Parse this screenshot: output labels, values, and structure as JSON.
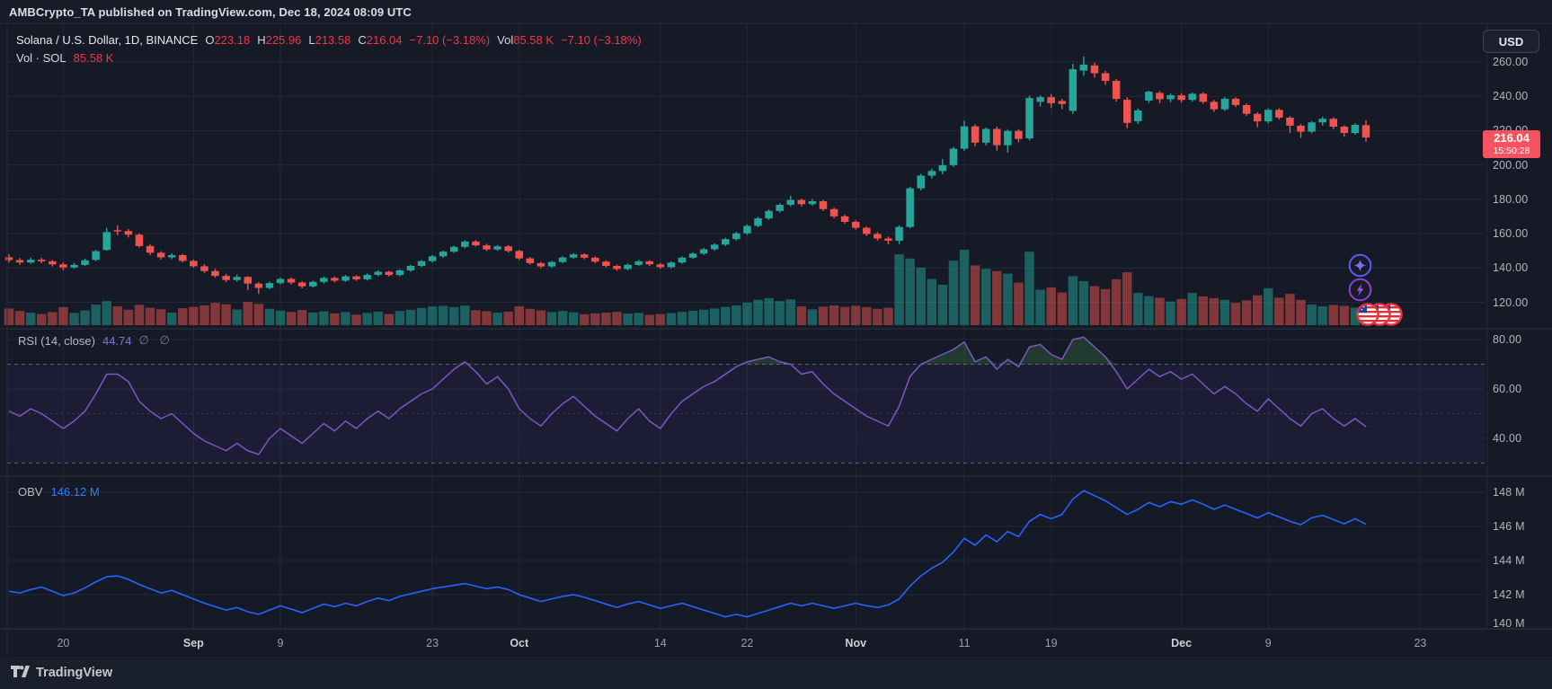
{
  "header": {
    "published": "AMBCrypto_TA published on TradingView.com, Dec 18, 2024 08:09 UTC"
  },
  "legend": {
    "symbol": "Solana / U.S. Dollar, 1D, BINANCE",
    "ohlc": [
      {
        "k": "O",
        "v": "223.18"
      },
      {
        "k": "H",
        "v": "225.96"
      },
      {
        "k": "L",
        "v": "213.58"
      },
      {
        "k": "C",
        "v": "216.04"
      }
    ],
    "change": "−7.10 (−3.18%)",
    "vol_label": "Vol",
    "vol_value": "85.58 K",
    "change2": "−7.10 (−3.18%)",
    "row2_label": "Vol · SOL",
    "row2_value": "85.58 K"
  },
  "axis": {
    "currency": "USD",
    "price_badge": {
      "price": "216.04",
      "time": "15:50:28"
    },
    "price_axis_labels": [
      {
        "text": "260.00",
        "value": 260
      },
      {
        "text": "240.00",
        "value": 240
      },
      {
        "text": "220.00",
        "value": 220
      },
      {
        "text": "200.00",
        "value": 200
      },
      {
        "text": "180.00",
        "value": 180
      },
      {
        "text": "160.00",
        "value": 160
      },
      {
        "text": "140.00",
        "value": 140
      },
      {
        "text": "120.00",
        "value": 120
      }
    ],
    "rsi_axis_labels": [
      {
        "text": "80.00",
        "value": 80
      },
      {
        "text": "60.00",
        "value": 60
      },
      {
        "text": "40.00",
        "value": 40
      }
    ],
    "obv_axis_labels": [
      {
        "text": "148 M",
        "value": 148
      },
      {
        "text": "146 M",
        "value": 146
      },
      {
        "text": "144 M",
        "value": 144
      },
      {
        "text": "142 M",
        "value": 142
      },
      {
        "text": "140 M",
        "value": 140
      }
    ],
    "time_ticks": [
      {
        "label": "20",
        "index": 5,
        "major": false
      },
      {
        "label": "Sep",
        "index": 17,
        "major": true
      },
      {
        "label": "9",
        "index": 25,
        "major": false
      },
      {
        "label": "23",
        "index": 39,
        "major": false
      },
      {
        "label": "Oct",
        "index": 47,
        "major": true
      },
      {
        "label": "14",
        "index": 60,
        "major": false
      },
      {
        "label": "22",
        "index": 68,
        "major": false
      },
      {
        "label": "Nov",
        "index": 78,
        "major": true
      },
      {
        "label": "11",
        "index": 88,
        "major": false
      },
      {
        "label": "19",
        "index": 96,
        "major": false
      },
      {
        "label": "Dec",
        "index": 108,
        "major": true
      },
      {
        "label": "9",
        "index": 116,
        "major": false
      },
      {
        "label": "23",
        "index": 130,
        "major": false
      }
    ]
  },
  "rsi_pane": {
    "title": "RSI (14, close)",
    "value": "44.74",
    "empties": "∅ ∅"
  },
  "obv_pane": {
    "title": "OBV",
    "value": "146.12 M"
  },
  "footer": {
    "brand": "TradingView"
  },
  "icons": {
    "right_floats": [
      "sparkle-badge",
      "lightning-badge",
      "us-flag-idea-bubbles"
    ]
  },
  "colors": {
    "up": "#26a69a",
    "down": "#ef5350",
    "badge": "#f7525f",
    "rsi_line": "#7e57c2",
    "obv_line": "#2962ff",
    "value_red": "#f23645",
    "rsi_value": "#8673ce",
    "obv_value": "#2d7ff9",
    "grid": "#222838",
    "band": "rgba(124,77,255,0.07)"
  },
  "chart_data": {
    "type": "candlestick+volume+rsi+obv",
    "symbol": "SOL/USD",
    "timeframe": "1D",
    "exchange": "BINANCE",
    "title": "Solana / U.S. Dollar, 1D, BINANCE",
    "start_date": "2024-08-15",
    "end_date": "2024-12-18",
    "last_bar": {
      "o": 223.18,
      "h": 225.96,
      "l": 213.58,
      "c": 216.04,
      "change": -7.1,
      "change_pct": -3.18,
      "volume_k": 85.58
    },
    "price_axis": [
      260,
      240,
      220,
      200,
      180,
      160,
      140,
      120
    ],
    "rsi_levels": [
      70,
      50,
      30
    ],
    "rsi_last": 44.74,
    "obv_last_m": 146.12,
    "obv_axis": [
      148,
      146,
      144,
      142,
      140
    ],
    "candles": [
      [
        146.2,
        147.9,
        143.1,
        144.6,
        78
      ],
      [
        144.6,
        145.8,
        141.9,
        143.2,
        66
      ],
      [
        143.2,
        146.1,
        142.5,
        144.8,
        58
      ],
      [
        144.8,
        145.9,
        142.8,
        143.9,
        52
      ],
      [
        143.9,
        144.7,
        140.9,
        142.1,
        61
      ],
      [
        142.1,
        143.2,
        138.8,
        140.3,
        84
      ],
      [
        140.3,
        142.9,
        139.6,
        141.8,
        57
      ],
      [
        141.8,
        145.4,
        141.2,
        144.5,
        69
      ],
      [
        144.7,
        150.6,
        144.0,
        149.8,
        96
      ],
      [
        150.5,
        163.4,
        150.1,
        160.9,
        112
      ],
      [
        162.0,
        164.8,
        159.2,
        161.5,
        88
      ],
      [
        161.5,
        162.7,
        157.8,
        159.4,
        72
      ],
      [
        159.4,
        160.2,
        151.9,
        152.8,
        95
      ],
      [
        152.8,
        153.9,
        147.6,
        148.9,
        81
      ],
      [
        148.9,
        149.8,
        144.9,
        146.2,
        74
      ],
      [
        146.2,
        148.6,
        145.1,
        147.5,
        58
      ],
      [
        147.5,
        148.1,
        143.2,
        144.1,
        79
      ],
      [
        144.1,
        144.9,
        140.2,
        141.0,
        85
      ],
      [
        141.0,
        142.2,
        137.1,
        138.2,
        92
      ],
      [
        138.2,
        139.5,
        134.3,
        135.4,
        104
      ],
      [
        135.4,
        136.6,
        131.7,
        133.0,
        97
      ],
      [
        133.0,
        136.2,
        132.1,
        134.8,
        73
      ],
      [
        134.8,
        135.3,
        127.2,
        130.9,
        108
      ],
      [
        130.9,
        131.8,
        124.9,
        128.4,
        99
      ],
      [
        128.4,
        132.0,
        127.5,
        131.2,
        76
      ],
      [
        131.2,
        134.4,
        130.3,
        133.6,
        68
      ],
      [
        133.6,
        134.5,
        130.4,
        131.5,
        62
      ],
      [
        131.5,
        132.3,
        128.1,
        129.3,
        71
      ],
      [
        129.3,
        132.6,
        128.6,
        131.9,
        59
      ],
      [
        131.9,
        135.0,
        131.0,
        134.2,
        64
      ],
      [
        134.2,
        135.1,
        131.6,
        132.6,
        55
      ],
      [
        132.6,
        135.9,
        131.9,
        135.1,
        61
      ],
      [
        135.1,
        135.8,
        132.4,
        133.4,
        49
      ],
      [
        133.4,
        136.8,
        132.7,
        136.0,
        57
      ],
      [
        136.0,
        138.6,
        135.2,
        137.8,
        63
      ],
      [
        137.8,
        138.4,
        135.0,
        135.9,
        52
      ],
      [
        135.9,
        139.3,
        135.1,
        138.6,
        66
      ],
      [
        138.6,
        141.9,
        137.8,
        141.2,
        72
      ],
      [
        141.2,
        144.7,
        140.5,
        144.0,
        80
      ],
      [
        144.0,
        147.5,
        143.2,
        146.8,
        87
      ],
      [
        146.8,
        150.2,
        145.9,
        149.5,
        90
      ],
      [
        149.5,
        153.0,
        148.7,
        152.3,
        84
      ],
      [
        152.3,
        156.2,
        151.5,
        155.4,
        91
      ],
      [
        155.4,
        156.3,
        152.4,
        153.2,
        70
      ],
      [
        153.2,
        154.0,
        149.9,
        150.8,
        65
      ],
      [
        150.8,
        153.4,
        150.0,
        152.6,
        58
      ],
      [
        152.6,
        153.3,
        149.0,
        149.9,
        63
      ],
      [
        149.9,
        150.6,
        144.6,
        145.6,
        88
      ],
      [
        145.6,
        146.4,
        141.9,
        142.8,
        76
      ],
      [
        142.8,
        143.6,
        139.8,
        140.9,
        69
      ],
      [
        140.9,
        144.2,
        140.1,
        143.5,
        61
      ],
      [
        143.5,
        146.9,
        142.8,
        146.1,
        66
      ],
      [
        146.1,
        148.7,
        145.3,
        147.9,
        60
      ],
      [
        147.9,
        148.6,
        145.1,
        146.0,
        51
      ],
      [
        146.0,
        146.8,
        142.8,
        143.7,
        55
      ],
      [
        143.7,
        144.5,
        140.3,
        141.2,
        58
      ],
      [
        141.2,
        142.0,
        138.4,
        139.4,
        62
      ],
      [
        139.4,
        142.6,
        138.7,
        141.8,
        54
      ],
      [
        141.8,
        144.7,
        141.1,
        143.9,
        57
      ],
      [
        143.9,
        144.6,
        141.2,
        142.1,
        48
      ],
      [
        142.1,
        142.9,
        139.5,
        140.5,
        52
      ],
      [
        140.5,
        143.9,
        139.8,
        143.2,
        56
      ],
      [
        143.2,
        146.8,
        142.5,
        146.0,
        62
      ],
      [
        146.0,
        149.2,
        145.3,
        148.4,
        67
      ],
      [
        148.4,
        151.7,
        147.6,
        150.9,
        72
      ],
      [
        150.9,
        154.4,
        150.1,
        153.6,
        78
      ],
      [
        153.6,
        157.6,
        152.8,
        156.8,
        85
      ],
      [
        156.8,
        161.0,
        156.0,
        160.2,
        92
      ],
      [
        160.2,
        165.3,
        159.4,
        164.5,
        105
      ],
      [
        164.5,
        169.8,
        163.7,
        168.9,
        118
      ],
      [
        168.9,
        174.1,
        168.0,
        173.2,
        126
      ],
      [
        173.2,
        177.7,
        172.3,
        176.8,
        112
      ],
      [
        176.8,
        182.1,
        175.9,
        179.6,
        120
      ],
      [
        179.6,
        180.4,
        175.8,
        177.2,
        88
      ],
      [
        177.2,
        180.1,
        176.3,
        178.9,
        74
      ],
      [
        178.9,
        179.6,
        173.2,
        174.3,
        86
      ],
      [
        174.3,
        175.1,
        168.9,
        170.1,
        92
      ],
      [
        170.1,
        171.0,
        165.8,
        166.9,
        85
      ],
      [
        166.9,
        167.8,
        162.3,
        163.4,
        90
      ],
      [
        163.4,
        164.2,
        158.6,
        159.8,
        84
      ],
      [
        159.8,
        160.9,
        155.9,
        157.2,
        76
      ],
      [
        157.2,
        158.4,
        153.8,
        155.9,
        81
      ],
      [
        155.9,
        164.8,
        153.9,
        163.9,
        330
      ],
      [
        163.9,
        187.4,
        163.1,
        186.4,
        310
      ],
      [
        186.4,
        194.9,
        185.2,
        193.8,
        268
      ],
      [
        193.8,
        197.8,
        192.1,
        196.5,
        215
      ],
      [
        196.5,
        203.5,
        194.6,
        199.9,
        188
      ],
      [
        199.9,
        210.6,
        198.9,
        209.5,
        300
      ],
      [
        209.5,
        225.7,
        208.3,
        222.5,
        351
      ],
      [
        222.5,
        223.6,
        210.9,
        213.0,
        278
      ],
      [
        213.0,
        221.9,
        211.4,
        221.0,
        262
      ],
      [
        221.0,
        222.3,
        208.4,
        211.5,
        252
      ],
      [
        211.5,
        220.9,
        207.2,
        219.8,
        240
      ],
      [
        219.8,
        220.7,
        213.2,
        215.2,
        198
      ],
      [
        215.5,
        240.4,
        214.4,
        239.0,
        342
      ],
      [
        236.8,
        240.6,
        234.1,
        239.5,
        165
      ],
      [
        239.5,
        241.3,
        233.2,
        236.0,
        176
      ],
      [
        237.3,
        238.5,
        232.6,
        235.5,
        152
      ],
      [
        231.5,
        258.9,
        229.8,
        255.8,
        228
      ],
      [
        255.0,
        263.2,
        252.0,
        258.5,
        205
      ],
      [
        258.0,
        259.6,
        250.9,
        253.4,
        182
      ],
      [
        253.5,
        254.8,
        246.7,
        249.0,
        168
      ],
      [
        249.0,
        250.2,
        236.9,
        238.5,
        214
      ],
      [
        238.0,
        239.4,
        221.5,
        224.5,
        246
      ],
      [
        225.5,
        232.9,
        223.9,
        231.8,
        150
      ],
      [
        237.5,
        243.3,
        236.1,
        242.7,
        135
      ],
      [
        242.0,
        243.1,
        236.0,
        238.3,
        128
      ],
      [
        238.3,
        241.6,
        236.5,
        240.6,
        110
      ],
      [
        240.6,
        241.9,
        236.4,
        237.9,
        122
      ],
      [
        237.9,
        242.3,
        236.8,
        241.5,
        150
      ],
      [
        241.5,
        242.4,
        235.7,
        236.8,
        134
      ],
      [
        236.8,
        237.9,
        230.9,
        232.4,
        126
      ],
      [
        232.4,
        239.5,
        231.5,
        238.6,
        118
      ],
      [
        238.6,
        239.4,
        233.8,
        234.9,
        104
      ],
      [
        234.9,
        235.8,
        228.6,
        229.8,
        116
      ],
      [
        229.8,
        230.7,
        222.0,
        225.4,
        139
      ],
      [
        225.4,
        233.0,
        224.3,
        232.1,
        172
      ],
      [
        232.1,
        233.0,
        226.4,
        227.6,
        128
      ],
      [
        227.6,
        228.5,
        218.5,
        222.9,
        146
      ],
      [
        222.9,
        223.8,
        215.8,
        219.4,
        118
      ],
      [
        219.4,
        225.6,
        218.4,
        224.8,
        96
      ],
      [
        224.8,
        228.1,
        222.9,
        226.9,
        88
      ],
      [
        226.9,
        227.8,
        220.9,
        222.3,
        94
      ],
      [
        222.3,
        223.1,
        216.4,
        218.6,
        90
      ],
      [
        218.6,
        224.3,
        217.7,
        223.4,
        82
      ],
      [
        223.18,
        225.96,
        213.58,
        216.04,
        85.58
      ]
    ],
    "rsi": [
      51,
      49,
      52,
      50,
      47,
      44,
      47,
      51,
      58,
      66,
      66,
      63,
      55,
      51,
      48,
      50,
      46,
      42,
      39,
      37,
      35,
      38,
      35,
      33.5,
      40,
      44,
      41,
      38,
      42,
      46,
      43,
      47,
      44,
      48,
      51,
      48,
      52,
      55,
      58,
      60,
      64,
      68,
      71,
      67,
      62,
      65,
      60,
      52,
      48,
      45,
      50,
      54,
      57,
      53,
      49,
      46,
      43,
      48,
      52,
      47,
      44,
      50,
      55,
      58,
      61,
      63,
      66,
      69,
      71,
      72,
      73,
      71,
      70,
      66,
      67,
      62,
      58,
      55,
      52,
      49,
      47,
      45,
      53,
      65,
      70,
      72,
      74,
      76,
      79,
      71,
      73,
      68,
      72,
      69,
      77,
      78,
      74,
      72,
      80,
      81,
      77,
      73,
      67,
      60,
      64,
      68,
      65,
      67,
      64,
      66,
      62,
      58,
      61,
      58,
      54,
      51,
      56,
      52,
      48,
      45,
      50,
      52,
      48,
      45,
      48,
      44.74
    ],
    "obv_m": [
      142.2,
      142.1,
      142.3,
      142.45,
      142.2,
      141.95,
      142.1,
      142.4,
      142.75,
      143.05,
      143.1,
      142.9,
      142.6,
      142.35,
      142.1,
      142.25,
      142.0,
      141.75,
      141.5,
      141.3,
      141.1,
      141.25,
      141.0,
      140.85,
      141.1,
      141.35,
      141.15,
      140.95,
      141.2,
      141.45,
      141.3,
      141.5,
      141.35,
      141.6,
      141.8,
      141.65,
      141.9,
      142.05,
      142.2,
      142.35,
      142.45,
      142.55,
      142.65,
      142.5,
      142.35,
      142.45,
      142.3,
      142.0,
      141.8,
      141.6,
      141.75,
      141.9,
      142.0,
      141.85,
      141.65,
      141.45,
      141.25,
      141.45,
      141.6,
      141.4,
      141.2,
      141.35,
      141.5,
      141.3,
      141.1,
      140.9,
      140.7,
      140.85,
      140.7,
      140.9,
      141.1,
      141.3,
      141.5,
      141.35,
      141.5,
      141.35,
      141.2,
      141.35,
      141.5,
      141.35,
      141.25,
      141.4,
      141.75,
      142.5,
      143.1,
      143.55,
      143.9,
      144.5,
      145.3,
      144.9,
      145.5,
      145.1,
      145.7,
      145.4,
      146.3,
      146.7,
      146.45,
      146.7,
      147.6,
      148.1,
      147.8,
      147.5,
      147.1,
      146.7,
      147.0,
      147.4,
      147.15,
      147.45,
      147.3,
      147.55,
      147.3,
      147.0,
      147.25,
      147.0,
      146.75,
      146.5,
      146.8,
      146.55,
      146.3,
      146.1,
      146.5,
      146.65,
      146.4,
      146.15,
      146.45,
      146.12
    ]
  }
}
